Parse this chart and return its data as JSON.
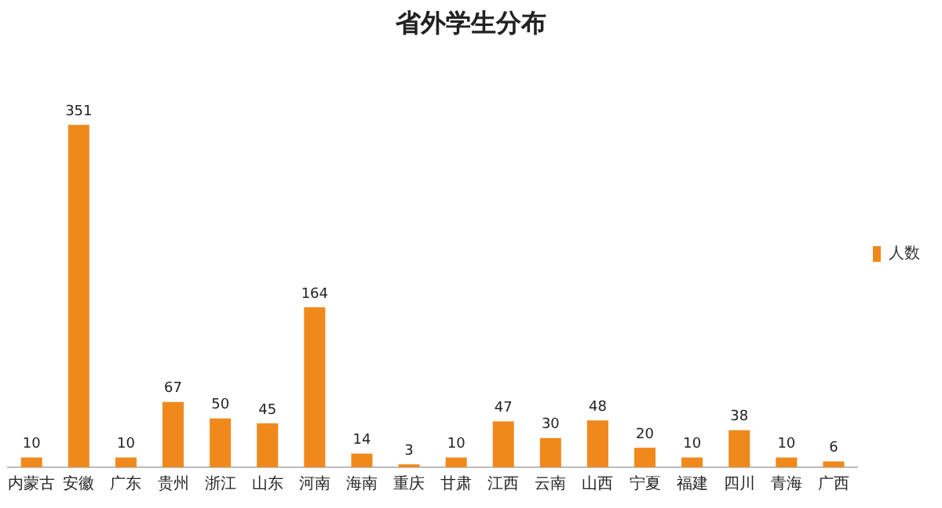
{
  "chart_data": {
    "type": "bar",
    "title": "省外学生分布",
    "categories": [
      "内蒙古",
      "安徽",
      "广东",
      "贵州",
      "浙江",
      "山东",
      "河南",
      "海南",
      "重庆",
      "甘肃",
      "江西",
      "云南",
      "山西",
      "宁夏",
      "福建",
      "四川",
      "青海",
      "广西"
    ],
    "series": [
      {
        "name": "人数",
        "color": "#f0891c",
        "values": [
          10,
          351,
          10,
          67,
          50,
          45,
          164,
          14,
          3,
          10,
          47,
          30,
          48,
          20,
          10,
          38,
          10,
          6
        ]
      }
    ],
    "data_labels": true,
    "legend": "right",
    "grid": false
  }
}
